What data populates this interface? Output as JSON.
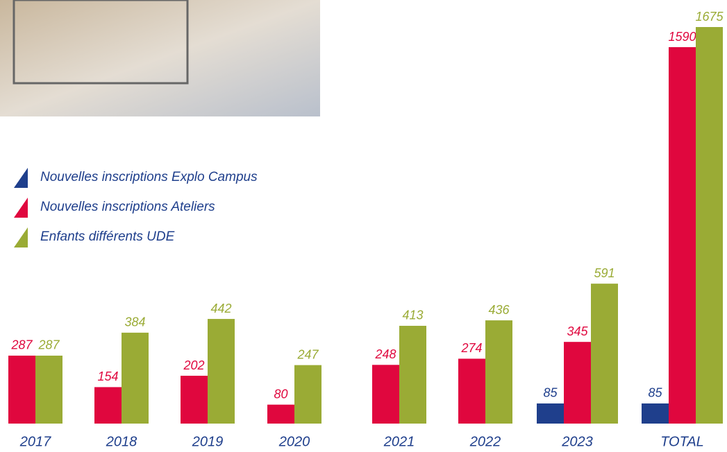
{
  "chart_data": {
    "type": "bar",
    "categories": [
      "2017",
      "2018",
      "2019",
      "2020",
      "2021",
      "2022",
      "2023",
      "TOTAL"
    ],
    "series": [
      {
        "name": "Nouvelles inscriptions Explo Campus",
        "color": "#1f3f8c",
        "values": [
          null,
          null,
          null,
          null,
          null,
          null,
          85,
          85
        ]
      },
      {
        "name": "Nouvelles inscriptions Ateliers",
        "color": "#e0073e",
        "values": [
          287,
          154,
          202,
          80,
          248,
          274,
          345,
          1590
        ]
      },
      {
        "name": "Enfants différents UDE",
        "color": "#9aab35",
        "values": [
          287,
          384,
          442,
          247,
          413,
          436,
          591,
          1675
        ]
      }
    ],
    "ylim": [
      0,
      1675
    ]
  }
}
